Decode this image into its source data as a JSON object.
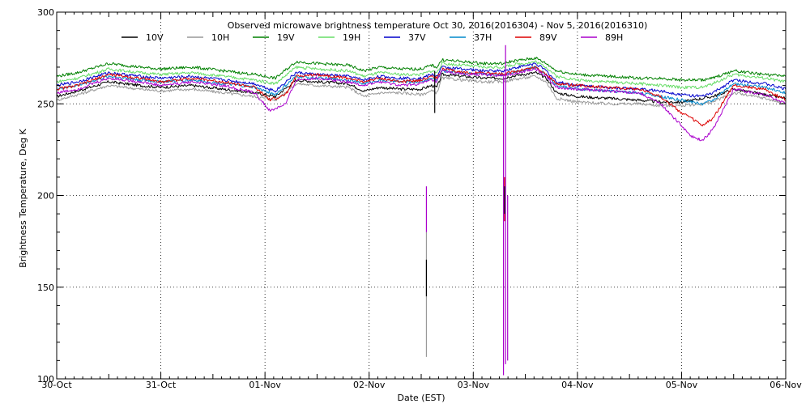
{
  "chart_data": {
    "type": "line",
    "title": "Observed microwave brightness temperature Oct 30, 2016(2016304) - Nov  5, 2016(2016310)",
    "xlabel": "Date (EST)",
    "ylabel": "Brightness Temperature, Deg K",
    "xlim": [
      0,
      7
    ],
    "ylim": [
      100,
      300
    ],
    "grid": true,
    "legend_position": "top",
    "x_ticks": [
      {
        "value": 0,
        "label": "30-Oct"
      },
      {
        "value": 1,
        "label": "31-Oct"
      },
      {
        "value": 2,
        "label": "01-Nov"
      },
      {
        "value": 3,
        "label": "02-Nov"
      },
      {
        "value": 4,
        "label": "03-Nov"
      },
      {
        "value": 5,
        "label": "04-Nov"
      },
      {
        "value": 6,
        "label": "05-Nov"
      },
      {
        "value": 7,
        "label": "06-Nov"
      }
    ],
    "y_ticks": [
      {
        "value": 100,
        "label": "100"
      },
      {
        "value": 150,
        "label": "150"
      },
      {
        "value": 200,
        "label": "200"
      },
      {
        "value": 250,
        "label": "250"
      },
      {
        "value": 300,
        "label": "300"
      }
    ],
    "series": [
      {
        "name": "10V",
        "color": "#000000",
        "x": [
          0,
          0.2,
          0.5,
          0.8,
          1.0,
          1.3,
          1.6,
          1.9,
          2.1,
          2.3,
          2.5,
          2.8,
          2.95,
          3.1,
          3.3,
          3.5,
          3.6,
          3.65,
          3.7,
          3.9,
          4.1,
          4.3,
          4.35,
          4.6,
          4.7,
          4.8,
          5.0,
          5.3,
          5.6,
          5.8,
          6.0,
          6.2,
          6.3,
          6.5,
          6.8,
          7.0
        ],
        "y": [
          254,
          257,
          262,
          260,
          259,
          260,
          258,
          256,
          254,
          263,
          262,
          261,
          257,
          259,
          258,
          258,
          260,
          259,
          266,
          265,
          264,
          264,
          265,
          267,
          264,
          256,
          254,
          253,
          252,
          251,
          251,
          253,
          254,
          258,
          255,
          253
        ]
      },
      {
        "name": "10H",
        "color": "#999999",
        "x": [
          0,
          0.2,
          0.5,
          0.8,
          1.0,
          1.3,
          1.6,
          1.9,
          2.1,
          2.3,
          2.5,
          2.8,
          2.95,
          3.1,
          3.3,
          3.5,
          3.6,
          3.65,
          3.7,
          3.9,
          4.1,
          4.3,
          4.35,
          4.6,
          4.7,
          4.8,
          5.0,
          5.3,
          5.6,
          5.8,
          6.0,
          6.2,
          6.3,
          6.5,
          6.8,
          7.0
        ],
        "y": [
          252,
          255,
          260,
          258,
          257,
          258,
          256,
          254,
          252,
          261,
          260,
          259,
          254,
          256,
          256,
          255,
          257,
          256,
          264,
          263,
          262,
          262,
          263,
          265,
          262,
          253,
          251,
          250,
          250,
          249,
          249,
          250,
          251,
          256,
          253,
          250
        ]
      },
      {
        "name": "19V",
        "color": "#008000",
        "x": [
          0,
          0.2,
          0.5,
          0.8,
          1.0,
          1.3,
          1.6,
          1.9,
          2.1,
          2.3,
          2.5,
          2.8,
          2.95,
          3.1,
          3.3,
          3.5,
          3.6,
          3.65,
          3.7,
          3.9,
          4.1,
          4.3,
          4.35,
          4.6,
          4.7,
          4.8,
          5.0,
          5.3,
          5.6,
          5.8,
          6.0,
          6.2,
          6.3,
          6.5,
          6.8,
          7.0
        ],
        "y": [
          265,
          267,
          272,
          270,
          269,
          270,
          268,
          266,
          264,
          273,
          272,
          271,
          268,
          270,
          269,
          269,
          271,
          270,
          274,
          273,
          272,
          272,
          273,
          275,
          272,
          268,
          266,
          265,
          264,
          264,
          263,
          263,
          264,
          268,
          266,
          265
        ]
      },
      {
        "name": "19H",
        "color": "#66dd66",
        "x": [
          0,
          0.2,
          0.5,
          0.8,
          1.0,
          1.3,
          1.6,
          1.9,
          2.1,
          2.3,
          2.5,
          2.8,
          2.95,
          3.1,
          3.3,
          3.5,
          3.6,
          3.65,
          3.7,
          3.9,
          4.1,
          4.3,
          4.35,
          4.6,
          4.7,
          4.8,
          5.0,
          5.3,
          5.6,
          5.8,
          6.0,
          6.2,
          6.3,
          6.5,
          6.8,
          7.0
        ],
        "y": [
          262,
          264,
          269,
          267,
          266,
          267,
          265,
          263,
          261,
          270,
          269,
          268,
          265,
          267,
          266,
          266,
          268,
          267,
          272,
          271,
          270,
          270,
          271,
          273,
          270,
          265,
          263,
          262,
          261,
          260,
          259,
          259,
          261,
          266,
          264,
          262
        ]
      },
      {
        "name": "37V",
        "color": "#0000cc",
        "x": [
          0,
          0.2,
          0.5,
          0.8,
          1.0,
          1.3,
          1.6,
          1.9,
          2.1,
          2.3,
          2.5,
          2.8,
          2.95,
          3.1,
          3.3,
          3.5,
          3.6,
          3.65,
          3.7,
          3.9,
          4.1,
          4.3,
          4.35,
          4.6,
          4.7,
          4.8,
          5.0,
          5.3,
          5.6,
          5.8,
          6.0,
          6.2,
          6.3,
          6.5,
          6.8,
          7.0
        ],
        "y": [
          260,
          262,
          267,
          265,
          264,
          265,
          263,
          261,
          257,
          267,
          266,
          265,
          263,
          265,
          264,
          264,
          266,
          265,
          270,
          269,
          268,
          268,
          269,
          272,
          268,
          262,
          260,
          259,
          258,
          257,
          255,
          254,
          256,
          263,
          261,
          258
        ]
      },
      {
        "name": "37H",
        "color": "#0088cc",
        "x": [
          0,
          0.2,
          0.5,
          0.8,
          1.0,
          1.3,
          1.6,
          1.9,
          2.1,
          2.3,
          2.5,
          2.8,
          2.95,
          3.1,
          3.3,
          3.5,
          3.6,
          3.65,
          3.7,
          3.9,
          4.1,
          4.3,
          4.35,
          4.6,
          4.7,
          4.8,
          5.0,
          5.3,
          5.6,
          5.8,
          6.0,
          6.2,
          6.3,
          6.5,
          6.8,
          7.0
        ],
        "y": [
          258,
          260,
          265,
          263,
          262,
          263,
          261,
          259,
          255,
          265,
          264,
          263,
          261,
          263,
          262,
          262,
          264,
          263,
          268,
          267,
          266,
          266,
          267,
          270,
          266,
          260,
          258,
          257,
          256,
          254,
          252,
          250,
          252,
          261,
          259,
          256
        ]
      },
      {
        "name": "89V",
        "color": "#dd0000",
        "x": [
          0,
          0.2,
          0.5,
          0.8,
          1.0,
          1.3,
          1.6,
          1.9,
          2.05,
          2.2,
          2.3,
          2.5,
          2.8,
          2.95,
          3.1,
          3.3,
          3.5,
          3.6,
          3.65,
          3.7,
          3.9,
          4.1,
          4.3,
          4.35,
          4.6,
          4.7,
          4.8,
          5.0,
          5.3,
          5.6,
          5.8,
          6.0,
          6.1,
          6.2,
          6.3,
          6.5,
          6.8,
          7.0
        ],
        "y": [
          258,
          260,
          266,
          264,
          262,
          264,
          262,
          259,
          252,
          255,
          265,
          266,
          264,
          262,
          264,
          262,
          263,
          265,
          264,
          269,
          267,
          267,
          266,
          267,
          270,
          266,
          261,
          260,
          259,
          258,
          254,
          245,
          242,
          238,
          242,
          260,
          258,
          252
        ]
      },
      {
        "name": "89H",
        "color": "#aa00cc",
        "x": [
          0,
          0.2,
          0.5,
          0.8,
          1.0,
          1.3,
          1.6,
          1.9,
          2.05,
          2.2,
          2.3,
          2.5,
          2.8,
          2.95,
          3.1,
          3.3,
          3.5,
          3.6,
          3.65,
          3.7,
          3.9,
          4.1,
          4.3,
          4.35,
          4.6,
          4.7,
          4.8,
          5.0,
          5.3,
          5.6,
          5.8,
          6.0,
          6.1,
          6.2,
          6.3,
          6.5,
          6.8,
          7.0
        ],
        "y": [
          256,
          258,
          264,
          262,
          260,
          262,
          260,
          256,
          246,
          250,
          263,
          264,
          262,
          260,
          262,
          260,
          261,
          263,
          262,
          268,
          266,
          266,
          265,
          266,
          269,
          265,
          259,
          258,
          257,
          256,
          250,
          238,
          232,
          230,
          236,
          258,
          255,
          250
        ]
      }
    ],
    "spikes": [
      {
        "series": "10H",
        "x": 3.55,
        "from": 180,
        "to": 112
      },
      {
        "series": "10V",
        "x": 3.55,
        "from": 165,
        "to": 145
      },
      {
        "series": "89H",
        "x": 3.55,
        "from": 205,
        "to": 180
      },
      {
        "series": "89H",
        "x": 4.29,
        "from": 265,
        "to": 102
      },
      {
        "series": "89H",
        "x": 4.31,
        "from": 282,
        "to": 108
      },
      {
        "series": "89V",
        "x": 4.3,
        "from": 210,
        "to": 186
      },
      {
        "series": "10V",
        "x": 4.3,
        "from": 205,
        "to": 190
      },
      {
        "series": "89H",
        "x": 4.33,
        "from": 200,
        "to": 110
      },
      {
        "series": "10V",
        "x": 3.63,
        "from": 268,
        "to": 245
      }
    ]
  }
}
